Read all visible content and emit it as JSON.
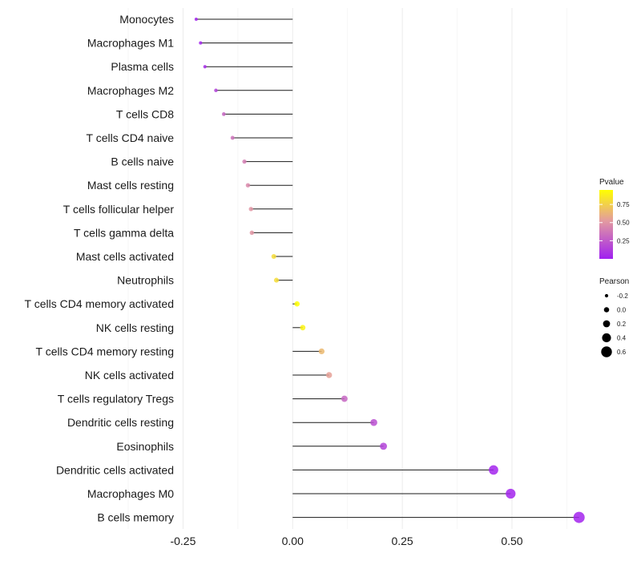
{
  "chart_data": {
    "type": "lollipop",
    "title": "",
    "xlabel": "",
    "ylabel": "",
    "xlim": [
      -0.28,
      0.67
    ],
    "x_ticks": [
      -0.25,
      0.0,
      0.25,
      0.5
    ],
    "x_tick_labels": [
      "-0.25",
      "0.00",
      "0.25",
      "0.50"
    ],
    "grid": true,
    "categories": [
      "Monocytes",
      "Macrophages M1",
      "Plasma cells",
      "Macrophages M2",
      "T cells CD8",
      "T cells CD4 naive",
      "B cells naive",
      "Mast cells resting",
      "T cells follicular helper",
      "T cells gamma delta",
      "Mast cells activated",
      "Neutrophils",
      "T cells CD4 memory activated",
      "NK cells resting",
      "T cells CD4 memory resting",
      "NK cells activated",
      "T cells regulatory  Tregs ",
      "Dendritic cells resting",
      "Eosinophils",
      "Dendritic cells activated",
      "Macrophages M0",
      "B cells memory"
    ],
    "pearson": [
      -0.22,
      -0.21,
      -0.2,
      -0.175,
      -0.157,
      -0.137,
      -0.11,
      -0.102,
      -0.095,
      -0.093,
      -0.043,
      -0.037,
      0.01,
      0.023,
      0.066,
      0.083,
      0.118,
      0.185,
      0.207,
      0.458,
      0.497,
      0.653
    ],
    "pvalue": [
      0.02,
      0.02,
      0.05,
      0.15,
      0.3,
      0.35,
      0.4,
      0.45,
      0.5,
      0.5,
      0.8,
      0.8,
      0.97,
      0.9,
      0.65,
      0.55,
      0.3,
      0.2,
      0.15,
      0.02,
      0.02,
      0.02
    ],
    "legend": {
      "placement": "right",
      "color_title": "Pvalue",
      "color_ticks": [
        0.25,
        0.5,
        0.75
      ],
      "color_tick_labels": [
        "0.25",
        "0.50",
        "0.75"
      ],
      "color_range": [
        0.0,
        0.95
      ],
      "color_low": "#a020f0",
      "color_high": "#ffff00",
      "size_title": "Pearson",
      "size_values": [
        -0.2,
        0.0,
        0.2,
        0.4,
        0.6
      ],
      "size_labels": [
        "-0.2",
        "0.0",
        "0.2",
        "0.4",
        "0.6"
      ]
    }
  }
}
